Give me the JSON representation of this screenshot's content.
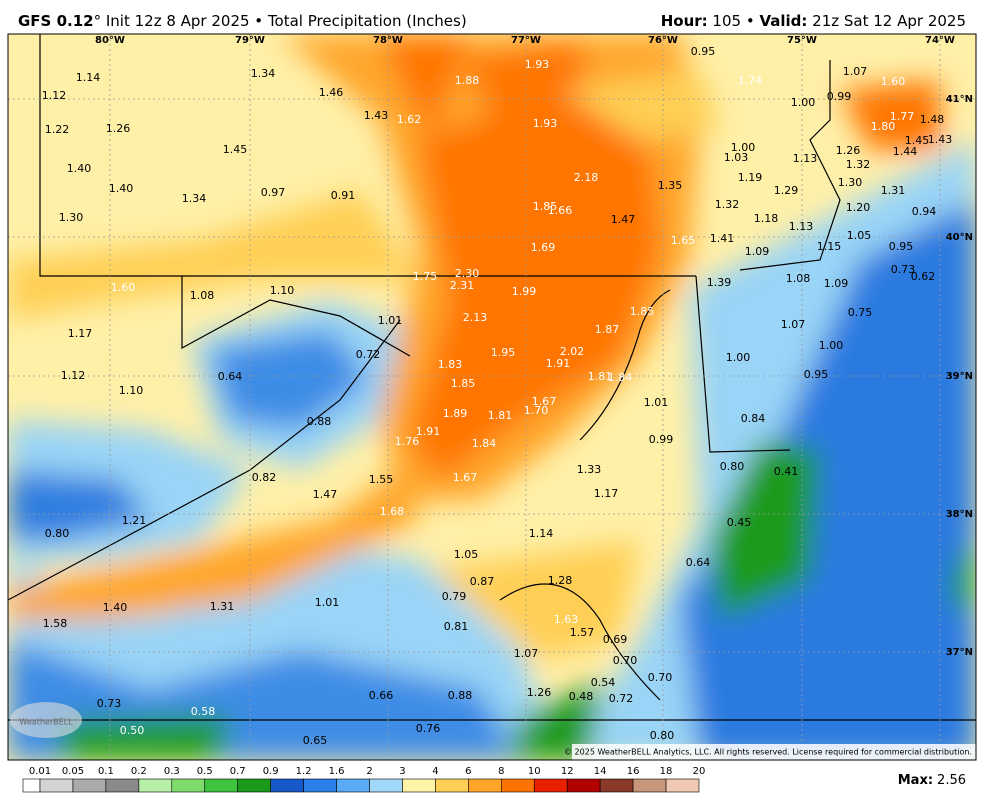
{
  "header": {
    "model": "GFS 0.12",
    "title_rest": "° Init 12z 8 Apr 2025 • Total Precipitation (Inches)",
    "hour_label": "Hour:",
    "hour": " 105 • ",
    "valid_label": "Valid:",
    "valid": " 21z Sat 12 Apr 2025"
  },
  "map": {
    "lon_labels": [
      "80°W",
      "79°W",
      "78°W",
      "77°W",
      "76°W",
      "75°W",
      "74°W"
    ],
    "lat_labels": [
      "41°N",
      "40°N",
      "39°N",
      "38°N",
      "37°N"
    ],
    "values": [
      "1.14",
      "1.12",
      "1.22",
      "1.26",
      "1.40",
      "1.40",
      "1.34",
      "1.30",
      "1.34",
      "1.46",
      "1.43",
      "1.62",
      "1.45",
      "0.97",
      "0.91",
      "1.88",
      "1.93",
      "1.93",
      "2.18",
      "1.85",
      "1.66",
      "1.47",
      "1.69",
      "1.35",
      "1.65",
      "1.74",
      "0.95",
      "1.00",
      "0.99",
      "1.07",
      "1.60",
      "1.77",
      "1.48",
      "1.80",
      "1.45",
      "1.43",
      "1.44",
      "1.00",
      "1.03",
      "1.13",
      "1.26",
      "1.32",
      "1.19",
      "1.30",
      "1.29",
      "1.31",
      "1.32",
      "1.20",
      "0.94",
      "1.18",
      "1.13",
      "1.05",
      "1.41",
      "1.15",
      "0.95",
      "1.09",
      "0.73",
      "0.62",
      "1.08",
      "1.09",
      "1.39",
      "1.75",
      "2.30",
      "2.31",
      "1.99",
      "1.60",
      "1.08",
      "1.10",
      "2.13",
      "1.85",
      "1.87",
      "1.01",
      "1.17",
      "0.72",
      "1.95",
      "2.02",
      "1.83",
      "1.91",
      "0.75",
      "1.07",
      "1.00",
      "1.00",
      "1.12",
      "0.64",
      "1.81",
      "1.84",
      "0.95",
      "1.85",
      "1.10",
      "1.67",
      "1.70",
      "1.89",
      "1.81",
      "1.01",
      "0.84",
      "0.88",
      "1.91",
      "1.76",
      "1.84",
      "0.99",
      "0.80",
      "0.41",
      "1.33",
      "0.82",
      "1.55",
      "1.67",
      "1.47",
      "1.17",
      "1.68",
      "0.45",
      "1.21",
      "0.80",
      "1.14",
      "1.05",
      "0.64",
      "0.87",
      "1.28",
      "0.79",
      "1.40",
      "1.31",
      "1.58",
      "1.01",
      "1.63",
      "0.81",
      "1.57",
      "0.69",
      "1.07",
      "0.70",
      "0.54",
      "0.70",
      "1.26",
      "0.48",
      "0.72",
      "0.66",
      "0.88",
      "0.73",
      "0.58",
      "0.50",
      "0.76",
      "0.80",
      "0.65"
    ],
    "copyright": "© 2025 WeatherBELL Analytics, LLC. All rights reserved. License required for commercial distribution.",
    "logo": "WeatherBELL"
  },
  "colorbar": {
    "labels": [
      "0.01",
      "0.05",
      "0.1",
      "0.2",
      "0.3",
      "0.5",
      "0.7",
      "0.9",
      "1.2",
      "1.6",
      "2",
      "3",
      "4",
      "6",
      "8",
      "10",
      "12",
      "14",
      "16",
      "18",
      "20"
    ],
    "colors": [
      "#ffffff",
      "#d4d4d4",
      "#ababab",
      "#8a8a8a",
      "#b6f0a6",
      "#7fdc6c",
      "#3fc43f",
      "#1a9a1a",
      "#1658c8",
      "#2a7fe8",
      "#5aaaf4",
      "#a2d8fa",
      "#fff3a8",
      "#ffcf55",
      "#ffa62a",
      "#ff7400",
      "#e82000",
      "#b00000",
      "#8a3a28",
      "#c8967a",
      "#f0c8b4"
    ],
    "max_label": "Max:",
    "max": "2.56"
  }
}
